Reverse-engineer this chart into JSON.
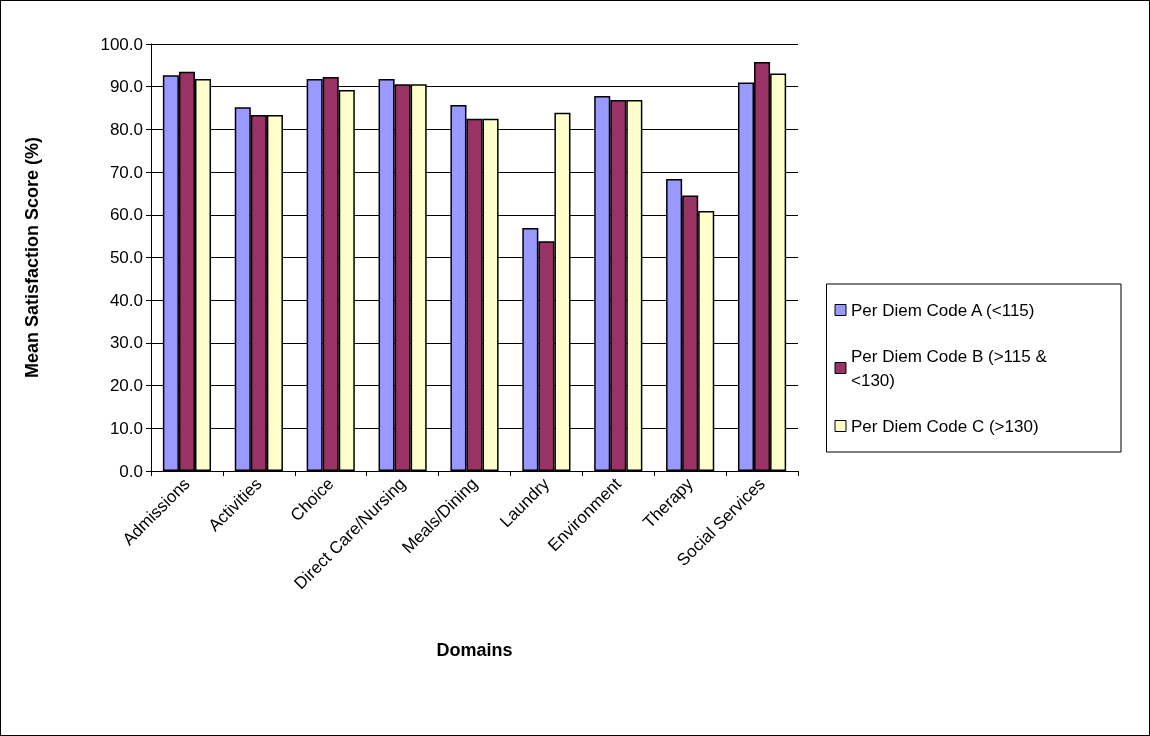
{
  "chart_data": {
    "type": "bar",
    "xlabel": "Domains",
    "ylabel": "Mean Satisfaction Score (%)",
    "categories": [
      "Admissions",
      "Activities",
      "Choice",
      "Direct Care/Nursing",
      "Meals/Dining",
      "Laundry",
      "Environment",
      "Therapy",
      "Social Services"
    ],
    "series": [
      {
        "name": "Per Diem Code A (<115)",
        "color": "#9999ff",
        "values": [
          92.7,
          85.2,
          91.8,
          91.8,
          85.7,
          56.9,
          87.8,
          68.4,
          91.0
        ]
      },
      {
        "name": "Per Diem Code B (>115 & <130)",
        "color": "#993366",
        "values": [
          93.5,
          83.4,
          92.3,
          90.6,
          82.5,
          53.8,
          86.9,
          64.5,
          95.8
        ]
      },
      {
        "name": "Per Diem Code C (>130)",
        "color": "#ffffcc",
        "values": [
          91.8,
          83.4,
          89.2,
          90.6,
          82.5,
          83.9,
          86.9,
          60.9,
          93.1
        ]
      }
    ],
    "ylim": [
      0,
      100
    ],
    "yticks": [
      {
        "value": 0,
        "label": "0.0"
      },
      {
        "value": 10,
        "label": "10.0"
      },
      {
        "value": 20,
        "label": "20.0"
      },
      {
        "value": 30,
        "label": "30.0"
      },
      {
        "value": 40,
        "label": "40.0"
      },
      {
        "value": 50,
        "label": "50.0"
      },
      {
        "value": 60,
        "label": "60.0"
      },
      {
        "value": 70,
        "label": "70.0"
      },
      {
        "value": 80,
        "label": "80.0"
      },
      {
        "value": 90,
        "label": "90.0"
      },
      {
        "value": 100,
        "label": "100.0"
      }
    ],
    "grid": "y",
    "legend": "right"
  }
}
